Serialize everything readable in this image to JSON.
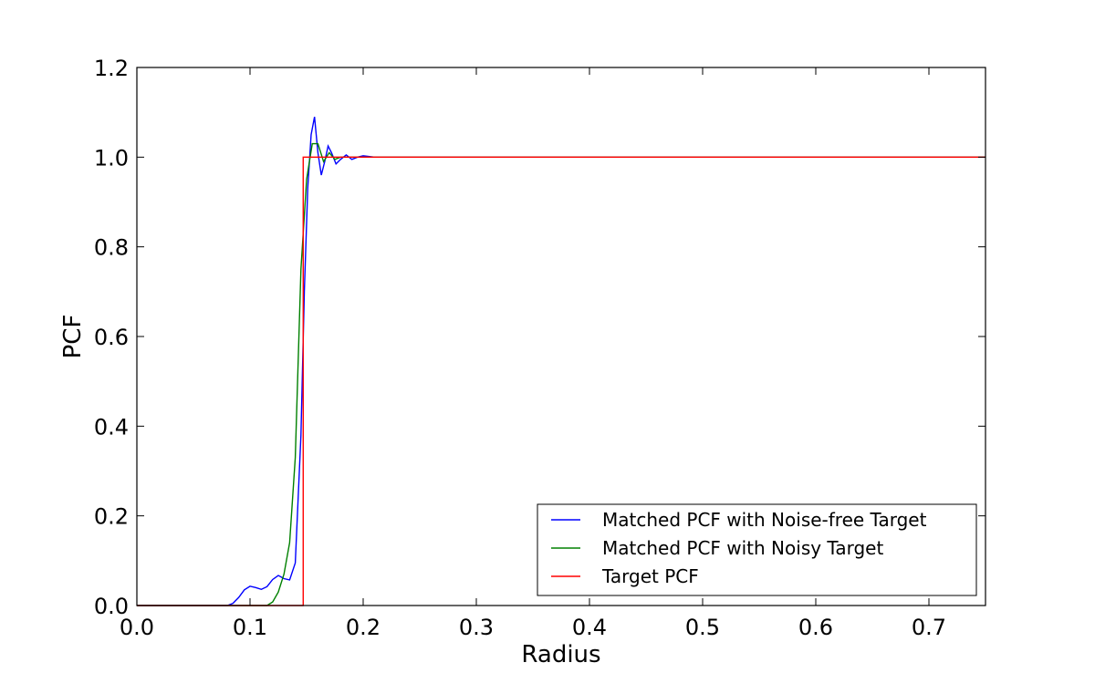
{
  "chart_data": {
    "type": "line",
    "xlabel": "Radius",
    "ylabel": "PCF",
    "xlim": [
      0,
      0.75
    ],
    "ylim": [
      0,
      1.2
    ],
    "xticks": [
      "0.0",
      "0.1",
      "0.2",
      "0.3",
      "0.4",
      "0.5",
      "0.6",
      "0.7"
    ],
    "xtick_values": [
      0,
      0.1,
      0.2,
      0.3,
      0.4,
      0.5,
      0.6,
      0.7
    ],
    "yticks": [
      "0.0",
      "0.2",
      "0.4",
      "0.6",
      "0.8",
      "1.0",
      "1.2"
    ],
    "ytick_values": [
      0,
      0.2,
      0.4,
      0.6,
      0.8,
      1.0,
      1.2
    ],
    "grid": false,
    "legend_position": "lower-right",
    "series": [
      {
        "name": "Matched PCF with Noise-free Target",
        "color": "#0000ff",
        "x": [
          0,
          0.08,
          0.085,
          0.09,
          0.095,
          0.1,
          0.105,
          0.11,
          0.115,
          0.12,
          0.125,
          0.13,
          0.135,
          0.14,
          0.145,
          0.148,
          0.151,
          0.154,
          0.157,
          0.16,
          0.163,
          0.166,
          0.169,
          0.172,
          0.176,
          0.18,
          0.185,
          0.19,
          0.195,
          0.2,
          0.21,
          0.25,
          0.3,
          0.35,
          0.4,
          0.45,
          0.5,
          0.55,
          0.6,
          0.65,
          0.7,
          0.75
        ],
        "y": [
          0,
          0,
          0.005,
          0.018,
          0.035,
          0.043,
          0.04,
          0.036,
          0.042,
          0.058,
          0.067,
          0.06,
          0.057,
          0.095,
          0.38,
          0.7,
          0.93,
          1.05,
          1.09,
          1.01,
          0.96,
          0.99,
          1.025,
          1.01,
          0.985,
          0.995,
          1.005,
          0.995,
          1.0,
          1.003,
          1.0,
          1.0,
          1.0,
          1.0,
          1.0,
          1.0,
          1.0,
          1.0,
          1.0,
          1.0,
          1.0,
          1.0
        ]
      },
      {
        "name": "Matched PCF with Noisy Target",
        "color": "#008000",
        "x": [
          0,
          0.115,
          0.12,
          0.125,
          0.13,
          0.135,
          0.14,
          0.145,
          0.15,
          0.155,
          0.16,
          0.165,
          0.17,
          0.175,
          0.18,
          0.19,
          0.2,
          0.25,
          0.3,
          0.35,
          0.4,
          0.45,
          0.5,
          0.55,
          0.6,
          0.65,
          0.7,
          0.75
        ],
        "y": [
          0,
          0,
          0.008,
          0.03,
          0.07,
          0.14,
          0.33,
          0.75,
          0.95,
          1.03,
          1.03,
          0.99,
          1.01,
          0.995,
          1.0,
          1.0,
          1.0,
          1.0,
          1.0,
          1.0,
          1.0,
          1.0,
          1.0,
          1.0,
          1.0,
          1.0,
          1.0,
          1.0
        ]
      },
      {
        "name": "Target PCF",
        "color": "#ff0000",
        "x": [
          0,
          0.147,
          0.147,
          0.75
        ],
        "y": [
          0,
          0,
          1.0,
          1.0
        ]
      }
    ]
  }
}
